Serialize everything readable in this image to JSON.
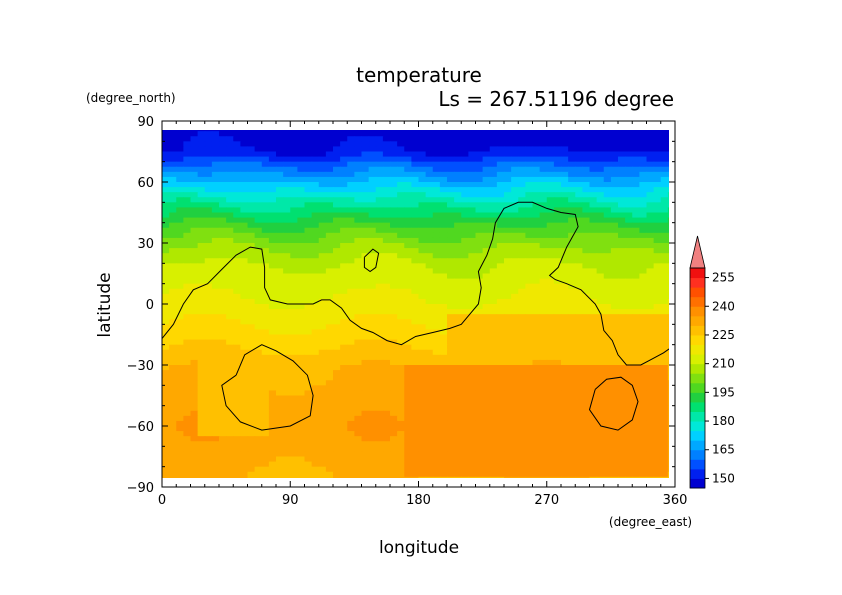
{
  "chart_data": {
    "type": "heatmap",
    "title": "temperature",
    "subtitle": "Ls = 267.51196 degree",
    "xlabel": "longitude",
    "ylabel": "latitude",
    "x_units": "(degree_east)",
    "y_units": "(degree_north)",
    "xlim": [
      0,
      360
    ],
    "ylim": [
      -90,
      90
    ],
    "x_ticks": [
      0,
      90,
      180,
      270,
      360
    ],
    "y_ticks": [
      90,
      60,
      30,
      0,
      -30,
      -60,
      -90
    ],
    "x_tick_labels": [
      "0",
      "90",
      "180",
      "270",
      "360"
    ],
    "y_tick_labels": [
      "90",
      "60",
      "30",
      "0",
      "−30",
      "−60",
      "−90"
    ],
    "colorbar": {
      "levels": [
        145,
        150,
        155,
        160,
        165,
        170,
        175,
        180,
        185,
        190,
        195,
        200,
        205,
        210,
        215,
        220,
        225,
        230,
        235,
        240,
        245,
        250,
        255,
        260
      ],
      "colors": [
        "#0000d0",
        "#0020f0",
        "#0050ff",
        "#0080ff",
        "#00a8ff",
        "#00d0ff",
        "#00e8d8",
        "#00e8a8",
        "#00e070",
        "#20d040",
        "#50d820",
        "#80e010",
        "#b0e800",
        "#d8f000",
        "#f0e800",
        "#ffd800",
        "#ffc000",
        "#ffa800",
        "#ff9000",
        "#ff7000",
        "#ff5000",
        "#ff3020",
        "#f01010"
      ],
      "tick_labels": [
        "150",
        "165",
        "180",
        "195",
        "210",
        "225",
        "240",
        "255"
      ],
      "overflow_color": "#f08080"
    },
    "lat_profile": [
      {
        "lat": 85,
        "t": 147
      },
      {
        "lat": 75,
        "t": 150
      },
      {
        "lat": 68,
        "t": 160
      },
      {
        "lat": 60,
        "t": 170
      },
      {
        "lat": 52,
        "t": 180
      },
      {
        "lat": 45,
        "t": 188
      },
      {
        "lat": 38,
        "t": 196
      },
      {
        "lat": 30,
        "t": 203
      },
      {
        "lat": 20,
        "t": 210
      },
      {
        "lat": 10,
        "t": 213
      },
      {
        "lat": 0,
        "t": 216
      },
      {
        "lat": -10,
        "t": 220
      },
      {
        "lat": -20,
        "t": 224
      },
      {
        "lat": -30,
        "t": 229
      },
      {
        "lat": -45,
        "t": 232
      },
      {
        "lat": -60,
        "t": 234
      },
      {
        "lat": -75,
        "t": 232
      },
      {
        "lat": -85,
        "t": 230
      }
    ],
    "hot_region": {
      "lon_range": [
        170,
        355
      ],
      "lat_range": [
        -85,
        -30
      ],
      "t": 237
    },
    "warm_patch": {
      "lon_range": [
        200,
        360
      ],
      "lat_range": [
        -30,
        -5
      ],
      "t": 226
    },
    "cool_patch": {
      "lon_range": [
        25,
        75
      ],
      "lat_range": [
        -65,
        -20
      ],
      "t": 225
    },
    "contours": [
      {
        "name": "main-coastline",
        "points": [
          [
            0,
            -17
          ],
          [
            8,
            -10
          ],
          [
            15,
            0
          ],
          [
            22,
            7
          ],
          [
            32,
            10
          ],
          [
            42,
            17
          ],
          [
            52,
            24
          ],
          [
            62,
            28
          ],
          [
            70,
            27
          ],
          [
            72,
            18
          ],
          [
            72,
            8
          ],
          [
            76,
            2
          ],
          [
            88,
            0
          ],
          [
            106,
            0
          ],
          [
            112,
            2
          ],
          [
            118,
            2
          ],
          [
            126,
            -2
          ],
          [
            132,
            -8
          ],
          [
            140,
            -12
          ],
          [
            148,
            -14
          ],
          [
            158,
            -18
          ],
          [
            168,
            -20
          ],
          [
            178,
            -16
          ],
          [
            190,
            -14
          ],
          [
            202,
            -12
          ],
          [
            210,
            -10
          ],
          [
            216,
            -5
          ],
          [
            222,
            0
          ],
          [
            224,
            8
          ],
          [
            222,
            16
          ],
          [
            228,
            24
          ],
          [
            232,
            32
          ],
          [
            234,
            40
          ],
          [
            240,
            47
          ],
          [
            250,
            50
          ],
          [
            260,
            50
          ],
          [
            270,
            47
          ],
          [
            280,
            45
          ],
          [
            290,
            44
          ],
          [
            292,
            38
          ],
          [
            284,
            28
          ],
          [
            278,
            18
          ],
          [
            272,
            14
          ],
          [
            276,
            12
          ],
          [
            284,
            10
          ],
          [
            294,
            7
          ],
          [
            304,
            0
          ],
          [
            308,
            -5
          ],
          [
            310,
            -13
          ],
          [
            316,
            -18
          ],
          [
            320,
            -25
          ],
          [
            326,
            -30
          ],
          [
            336,
            -30
          ],
          [
            344,
            -27
          ],
          [
            352,
            -24
          ],
          [
            360,
            -20
          ]
        ]
      },
      {
        "name": "small-island",
        "points": [
          [
            142,
            23
          ],
          [
            148,
            27
          ],
          [
            152,
            25
          ],
          [
            150,
            18
          ],
          [
            146,
            16
          ],
          [
            142,
            18
          ],
          [
            142,
            23
          ]
        ]
      },
      {
        "name": "west-basin",
        "points": [
          [
            52,
            -35
          ],
          [
            58,
            -25
          ],
          [
            70,
            -20
          ],
          [
            80,
            -23
          ],
          [
            92,
            -28
          ],
          [
            102,
            -35
          ],
          [
            106,
            -45
          ],
          [
            104,
            -55
          ],
          [
            90,
            -60
          ],
          [
            70,
            -62
          ],
          [
            55,
            -58
          ],
          [
            45,
            -50
          ],
          [
            42,
            -40
          ],
          [
            52,
            -35
          ]
        ]
      },
      {
        "name": "east-basin",
        "points": [
          [
            304,
            -42
          ],
          [
            312,
            -37
          ],
          [
            322,
            -36
          ],
          [
            330,
            -40
          ],
          [
            334,
            -48
          ],
          [
            330,
            -57
          ],
          [
            320,
            -62
          ],
          [
            308,
            -60
          ],
          [
            300,
            -52
          ],
          [
            304,
            -42
          ]
        ]
      }
    ]
  }
}
